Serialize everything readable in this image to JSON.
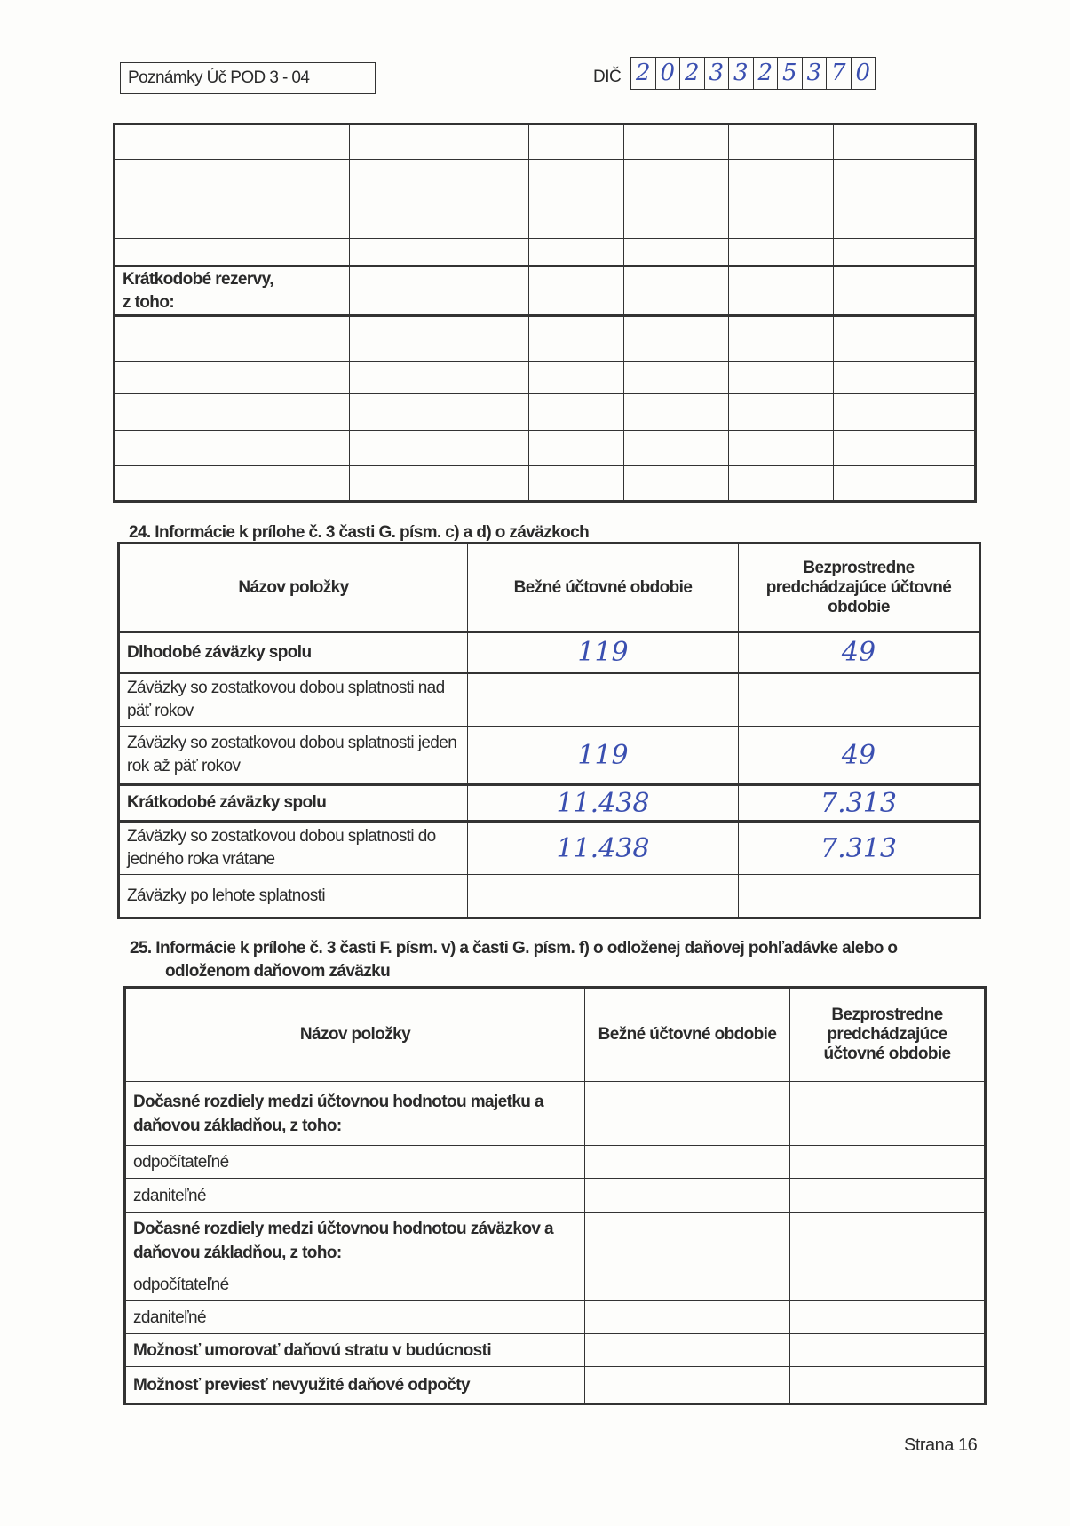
{
  "header": {
    "form_label": "Poznámky Úč POD 3 - 04",
    "dic_label": "DIČ",
    "dic_digits": [
      "2",
      "0",
      "2",
      "3",
      "3",
      "2",
      "5",
      "3",
      "7",
      "0"
    ]
  },
  "top_table": {
    "rows": [
      "",
      "",
      "",
      "",
      "Krátkodobé rezervy,\nz toho:",
      "",
      "",
      "",
      "",
      ""
    ]
  },
  "section24": {
    "title": "24.  Informácie k prílohe č. 3  časti G. písm. c) a d) o záväzkoch",
    "headers": [
      "Názov položky",
      "Bežné účtovné obdobie",
      "Bezprostredne predchádzajúce účtovné obdobie"
    ],
    "rows": [
      {
        "label": "Dlhodobé záväzky spolu",
        "bold": true,
        "current": "119",
        "previous": "49"
      },
      {
        "label": "Záväzky so zostatkovou dobou splatnosti nad päť rokov",
        "bold": false,
        "current": "",
        "previous": ""
      },
      {
        "label": "Záväzky so zostatkovou dobou splatnosti jeden rok až päť rokov",
        "bold": false,
        "current": "119",
        "previous": "49"
      },
      {
        "label": "Krátkodobé záväzky spolu",
        "bold": true,
        "current": "11.438",
        "previous": "7.313"
      },
      {
        "label": "Záväzky so zostatkovou dobou splatnosti do jedného roka vrátane",
        "bold": false,
        "current": "11.438",
        "previous": "7.313"
      },
      {
        "label": "Záväzky po lehote splatnosti",
        "bold": false,
        "current": "",
        "previous": ""
      }
    ]
  },
  "section25": {
    "title_line1": "25.  Informácie k prílohe č. 3 časti F. písm. v) a časti G. písm. f) o odloženej daňovej pohľadávke alebo o",
    "title_line2": "odloženom daňovom záväzku",
    "headers": [
      "Názov položky",
      "Bežné účtovné obdobie",
      "Bezprostredne predchádzajúce účtovné obdobie"
    ],
    "rows": [
      {
        "label": "Dočasné rozdiely medzi účtovnou hodnotou majetku a daňovou základňou, z toho:",
        "bold": true
      },
      {
        "label": "odpočítateľné",
        "bold": false
      },
      {
        "label": "zdaniteľné",
        "bold": false
      },
      {
        "label": "Dočasné rozdiely medzi účtovnou hodnotou záväzkov a daňovou základňou, z toho:",
        "bold": true
      },
      {
        "label": "odpočítateľné",
        "bold": false
      },
      {
        "label": "zdaniteľné",
        "bold": false
      },
      {
        "label": "Možnosť umorovať daňovú stratu v budúcnosti",
        "bold": true
      },
      {
        "label": "Možnosť previesť nevyužité daňové odpočty",
        "bold": true
      }
    ]
  },
  "footer": {
    "page": "Strana 16"
  },
  "colors": {
    "ink": "#2a2a2a",
    "handwriting": "#3a4fb0"
  }
}
